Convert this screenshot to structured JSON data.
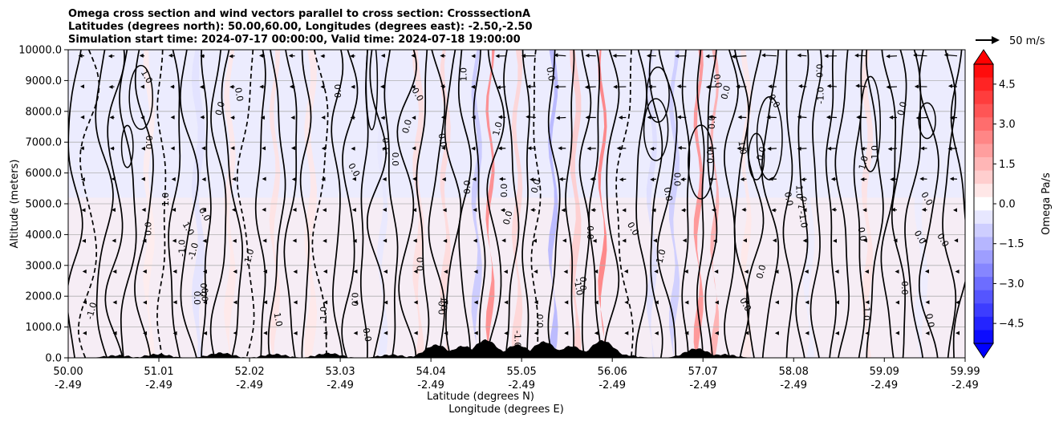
{
  "title_lines": [
    "Omega cross section and wind vectors parallel to cross section: CrosssectionA",
    "Latitudes (degrees north): 50.00,60.00, Longitudes (degrees east): -2.50,-2.50",
    "Simulation start time: 2024-07-17 00:00:00, Valid time: 2024-07-18 19:00:00"
  ],
  "chart_data": {
    "type": "contour",
    "title": "Omega cross section and wind vectors parallel to cross section: CrosssectionA",
    "ylabel": "Altitude (meters)",
    "xlabel_lines": [
      "Latitude (degrees N)",
      "Longitude (degrees E)"
    ],
    "ylim": [
      0,
      10000
    ],
    "yticks": [
      "0.0",
      "1000.0",
      "2000.0",
      "3000.0",
      "4000.0",
      "5000.0",
      "6000.0",
      "7000.0",
      "8000.0",
      "9000.0",
      "10000.0"
    ],
    "xlim_lat": [
      50.0,
      59.99
    ],
    "xticks": [
      {
        "lat": "50.00",
        "lon": "-2.49"
      },
      {
        "lat": "51.01",
        "lon": "-2.49"
      },
      {
        "lat": "52.02",
        "lon": "-2.49"
      },
      {
        "lat": "53.03",
        "lon": "-2.49"
      },
      {
        "lat": "54.04",
        "lon": "-2.49"
      },
      {
        "lat": "55.05",
        "lon": "-2.49"
      },
      {
        "lat": "56.06",
        "lon": "-2.49"
      },
      {
        "lat": "57.07",
        "lon": "-2.49"
      },
      {
        "lat": "58.08",
        "lon": "-2.49"
      },
      {
        "lat": "59.09",
        "lon": "-2.49"
      },
      {
        "lat": "59.99",
        "lon": "-2.49"
      }
    ],
    "grid": "horizontal",
    "colorbar": {
      "label": "Omega Pa/s",
      "range": [
        -5.25,
        5.25
      ],
      "ticks": [
        "−4.5",
        "−3.0",
        "−1.5",
        "0.0",
        "1.5",
        "3.0",
        "4.5"
      ],
      "colors_negative": "#0000ff",
      "colors_positive": "#ff0000"
    },
    "quiver_key": "50 m/s",
    "contour_level_labels": [
      "0.0",
      "1.0",
      "-1.0"
    ],
    "shaded_bands": [
      {
        "lat": 50.9,
        "width": 0.06,
        "omega": 0.4
      },
      {
        "lat": 51.45,
        "width": 0.08,
        "omega": -0.6
      },
      {
        "lat": 51.8,
        "width": 0.06,
        "omega": 0.5
      },
      {
        "lat": 52.3,
        "width": 0.05,
        "omega": 0.6
      },
      {
        "lat": 52.7,
        "width": 0.07,
        "omega": 0.5
      },
      {
        "lat": 53.5,
        "width": 0.05,
        "omega": -0.5
      },
      {
        "lat": 53.9,
        "width": 0.06,
        "omega": 0.7
      },
      {
        "lat": 54.2,
        "width": 0.05,
        "omega": 0.8
      },
      {
        "lat": 54.55,
        "width": 0.05,
        "omega": -1.2
      },
      {
        "lat": 54.7,
        "width": 0.03,
        "omega": 2.6
      },
      {
        "lat": 55.0,
        "width": 0.05,
        "omega": 0.9
      },
      {
        "lat": 55.4,
        "width": 0.04,
        "omega": -1.6
      },
      {
        "lat": 55.65,
        "width": 0.06,
        "omega": 1.1
      },
      {
        "lat": 55.95,
        "width": 0.03,
        "omega": 2.8
      },
      {
        "lat": 56.5,
        "width": 0.05,
        "omega": -0.7
      },
      {
        "lat": 56.75,
        "width": 0.05,
        "omega": -1.1
      },
      {
        "lat": 57.02,
        "width": 0.04,
        "omega": 2.4
      },
      {
        "lat": 57.2,
        "width": 0.03,
        "omega": 1.8
      },
      {
        "lat": 57.55,
        "width": 0.05,
        "omega": 0.5
      },
      {
        "lat": 58.25,
        "width": 0.06,
        "omega": -0.4
      },
      {
        "lat": 58.9,
        "width": 0.06,
        "omega": 0.6
      },
      {
        "lat": 59.5,
        "width": 0.08,
        "omega": -0.4
      }
    ],
    "terrain_peaks_m": [
      {
        "lat": 50.55,
        "height": 80
      },
      {
        "lat": 51.0,
        "height": 120
      },
      {
        "lat": 51.7,
        "height": 160
      },
      {
        "lat": 52.3,
        "height": 120
      },
      {
        "lat": 52.9,
        "height": 150
      },
      {
        "lat": 53.6,
        "height": 100
      },
      {
        "lat": 54.1,
        "height": 420
      },
      {
        "lat": 54.4,
        "height": 380
      },
      {
        "lat": 54.65,
        "height": 580
      },
      {
        "lat": 55.0,
        "height": 420
      },
      {
        "lat": 55.3,
        "height": 520
      },
      {
        "lat": 55.6,
        "height": 380
      },
      {
        "lat": 55.95,
        "height": 560
      },
      {
        "lat": 56.2,
        "height": 90
      },
      {
        "lat": 57.0,
        "height": 300
      },
      {
        "lat": 57.3,
        "height": 110
      }
    ]
  }
}
